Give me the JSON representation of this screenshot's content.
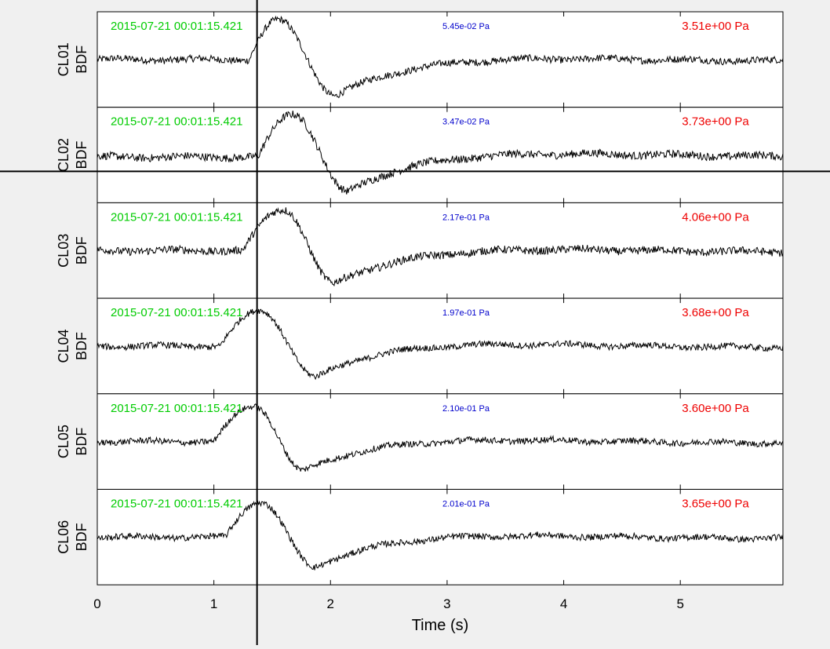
{
  "xaxis": {
    "label": "Time (s)",
    "ticks": [
      "0",
      "1",
      "2",
      "3",
      "4",
      "5"
    ],
    "range": [
      0,
      5.88
    ]
  },
  "cursor": {
    "time_s": 1.37,
    "panel": 2
  },
  "colors": {
    "timestamp": "#00cc00",
    "small_amp": "#0000cc",
    "big_amp": "#ee0000",
    "trace": "#000000",
    "plot_bg": "#ffffff",
    "window_bg": "#f0f0f0"
  },
  "channels": [
    {
      "station": "CL01",
      "channel": "BDF",
      "timestamp": "2015-07-21 00:01:15.421",
      "small_amp": "5.45e-02 Pa",
      "big_amp": "3.51e+00 Pa"
    },
    {
      "station": "CL02",
      "channel": "BDF",
      "timestamp": "2015-07-21 00:01:15.421",
      "small_amp": "3.47e-02 Pa",
      "big_amp": "3.73e+00 Pa"
    },
    {
      "station": "CL03",
      "channel": "BDF",
      "timestamp": "2015-07-21 00:01:15.421",
      "small_amp": "2.17e-01 Pa",
      "big_amp": "4.06e+00 Pa"
    },
    {
      "station": "CL04",
      "channel": "BDF",
      "timestamp": "2015-07-21 00:01:15.421",
      "small_amp": "1.97e-01 Pa",
      "big_amp": "3.68e+00 Pa"
    },
    {
      "station": "CL05",
      "channel": "BDF",
      "timestamp": "2015-07-21 00:01:15.421",
      "small_amp": "2.10e-01 Pa",
      "big_amp": "3.60e+00 Pa"
    },
    {
      "station": "CL06",
      "channel": "BDF",
      "timestamp": "2015-07-21 00:01:15.421",
      "small_amp": "2.01e-01 Pa",
      "big_amp": "3.65e+00 Pa"
    }
  ],
  "waveforms": [
    {
      "baseline": 0.0,
      "onset": 1.3,
      "rise": 0.25,
      "peak": 1.0,
      "trough": -0.92,
      "trough_t": 2.05,
      "recover": 0.6,
      "noise": 0.09
    },
    {
      "baseline": -0.05,
      "onset": 1.38,
      "rise": 0.3,
      "peak": 1.05,
      "trough": -0.95,
      "trough_t": 2.15,
      "recover": 0.55,
      "noise": 0.1
    },
    {
      "baseline": 0.0,
      "onset": 1.25,
      "rise": 0.35,
      "peak": 1.05,
      "trough": -0.85,
      "trough_t": 2.03,
      "recover": 0.6,
      "noise": 0.1
    },
    {
      "baseline": 0.0,
      "onset": 1.05,
      "rise": 0.35,
      "peak": 0.9,
      "trough": -0.8,
      "trough_t": 1.88,
      "recover": 0.5,
      "noise": 0.08
    },
    {
      "baseline": 0.0,
      "onset": 1.0,
      "rise": 0.35,
      "peak": 0.9,
      "trough": -0.75,
      "trough_t": 1.77,
      "recover": 0.55,
      "noise": 0.08
    },
    {
      "baseline": 0.0,
      "onset": 1.1,
      "rise": 0.3,
      "peak": 0.9,
      "trough": -0.78,
      "trough_t": 1.87,
      "recover": 0.55,
      "noise": 0.08
    }
  ]
}
